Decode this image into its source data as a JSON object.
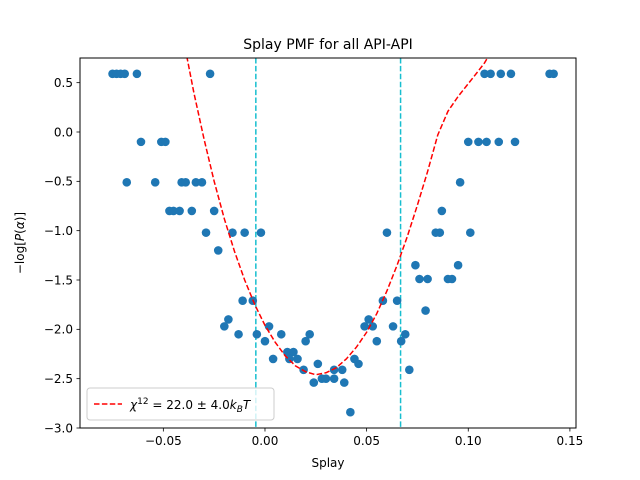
{
  "chart_data": {
    "type": "scatter",
    "title": "Splay PMF for all API-API",
    "xlabel": "Splay",
    "ylabel": "−log[P(α)]",
    "xlim": [
      -0.091,
      0.153
    ],
    "ylim": [
      -3.0,
      0.75
    ],
    "xticks": [
      -0.05,
      0.0,
      0.05,
      0.1,
      0.15
    ],
    "xtick_labels": [
      "−0.05",
      "0.00",
      "0.05",
      "0.10",
      "0.15"
    ],
    "yticks": [
      0.5,
      0.0,
      -0.5,
      -1.0,
      -1.5,
      -2.0,
      -2.5,
      -3.0
    ],
    "ytick_labels": [
      "0.5",
      "0.0",
      "−0.5",
      "−1.0",
      "−1.5",
      "−2.0",
      "−2.5",
      "−3.0"
    ],
    "grid": false,
    "legend_position": "lower-left",
    "series": [
      {
        "kind": "scatter",
        "color": "#1f77b4",
        "points": [
          [
            -0.075,
            0.59
          ],
          [
            -0.073,
            0.59
          ],
          [
            -0.071,
            0.59
          ],
          [
            -0.069,
            0.59
          ],
          [
            -0.063,
            0.59
          ],
          [
            -0.027,
            0.59
          ],
          [
            0.108,
            0.59
          ],
          [
            0.111,
            0.59
          ],
          [
            0.116,
            0.59
          ],
          [
            0.121,
            0.59
          ],
          [
            0.14,
            0.59
          ],
          [
            0.142,
            0.59
          ],
          [
            -0.061,
            -0.1
          ],
          [
            -0.051,
            -0.1
          ],
          [
            -0.049,
            -0.1
          ],
          [
            0.1,
            -0.1
          ],
          [
            0.105,
            -0.1
          ],
          [
            0.109,
            -0.1
          ],
          [
            0.115,
            -0.1
          ],
          [
            0.123,
            -0.1
          ],
          [
            -0.068,
            -0.51
          ],
          [
            -0.054,
            -0.51
          ],
          [
            -0.041,
            -0.51
          ],
          [
            -0.039,
            -0.51
          ],
          [
            -0.034,
            -0.51
          ],
          [
            -0.031,
            -0.51
          ],
          [
            0.096,
            -0.51
          ],
          [
            -0.047,
            -0.8
          ],
          [
            -0.045,
            -0.8
          ],
          [
            -0.042,
            -0.8
          ],
          [
            -0.036,
            -0.8
          ],
          [
            -0.025,
            -0.8
          ],
          [
            0.087,
            -0.8
          ],
          [
            -0.029,
            -1.02
          ],
          [
            -0.016,
            -1.02
          ],
          [
            -0.01,
            -1.02
          ],
          [
            -0.002,
            -1.02
          ],
          [
            0.06,
            -1.02
          ],
          [
            0.084,
            -1.02
          ],
          [
            0.086,
            -1.02
          ],
          [
            0.101,
            -1.02
          ],
          [
            -0.023,
            -1.2
          ],
          [
            0.074,
            -1.35
          ],
          [
            0.095,
            -1.35
          ],
          [
            0.076,
            -1.49
          ],
          [
            0.08,
            -1.49
          ],
          [
            0.09,
            -1.49
          ],
          [
            0.092,
            -1.49
          ],
          [
            -0.011,
            -1.71
          ],
          [
            -0.006,
            -1.71
          ],
          [
            0.058,
            -1.71
          ],
          [
            0.065,
            -1.71
          ],
          [
            0.079,
            -1.81
          ],
          [
            -0.018,
            -1.9
          ],
          [
            -0.02,
            -1.97
          ],
          [
            0.002,
            -1.97
          ],
          [
            0.049,
            -1.97
          ],
          [
            0.053,
            -1.97
          ],
          [
            0.063,
            -1.97
          ],
          [
            0.051,
            -1.9
          ],
          [
            -0.013,
            -2.05
          ],
          [
            -0.004,
            -2.05
          ],
          [
            0.008,
            -2.05
          ],
          [
            0.022,
            -2.05
          ],
          [
            0.069,
            -2.05
          ],
          [
            0.0,
            -2.12
          ],
          [
            0.02,
            -2.12
          ],
          [
            0.055,
            -2.12
          ],
          [
            0.067,
            -2.12
          ],
          [
            0.011,
            -2.23
          ],
          [
            0.014,
            -2.23
          ],
          [
            0.004,
            -2.3
          ],
          [
            0.012,
            -2.3
          ],
          [
            0.016,
            -2.3
          ],
          [
            0.044,
            -2.3
          ],
          [
            0.026,
            -2.35
          ],
          [
            0.046,
            -2.35
          ],
          [
            0.019,
            -2.41
          ],
          [
            0.034,
            -2.41
          ],
          [
            0.038,
            -2.41
          ],
          [
            0.071,
            -2.41
          ],
          [
            0.028,
            -2.5
          ],
          [
            0.03,
            -2.5
          ],
          [
            0.034,
            -2.5
          ],
          [
            0.024,
            -2.54
          ],
          [
            0.039,
            -2.54
          ],
          [
            0.042,
            -2.84
          ]
        ]
      },
      {
        "kind": "line",
        "name": "χ¹² = 22.0 ± 4.0k_BT",
        "color": "#ff0000",
        "dash": "dashed",
        "x": [
          -0.0385,
          -0.035,
          -0.03,
          -0.025,
          -0.02,
          -0.015,
          -0.01,
          -0.005,
          0.0,
          0.005,
          0.01,
          0.015,
          0.02,
          0.025,
          0.03,
          0.035,
          0.04,
          0.045,
          0.05,
          0.055,
          0.06,
          0.065,
          0.07,
          0.075,
          0.08,
          0.085,
          0.09,
          0.095,
          0.1,
          0.105,
          0.108,
          0.11
        ],
        "y": [
          0.77,
          0.4,
          -0.07,
          -0.5,
          -0.88,
          -1.21,
          -1.5,
          -1.75,
          -1.96,
          -2.13,
          -2.27,
          -2.37,
          -2.43,
          -2.46,
          -2.44,
          -2.39,
          -2.3,
          -2.18,
          -2.03,
          -1.84,
          -1.61,
          -1.35,
          -1.06,
          -0.74,
          -0.4,
          -0.03,
          0.21,
          0.36,
          0.49,
          0.62,
          0.7,
          0.77
        ]
      },
      {
        "kind": "vline",
        "color": "#17becf",
        "dash": "dashed",
        "x": [
          -0.0045,
          0.0667
        ]
      }
    ],
    "legend": {
      "label_main": "χ",
      "label_sup": "12",
      "label_rest": " = 22.0 ± 4.0",
      "label_k": "k",
      "label_sub": "B",
      "label_T": "T"
    }
  }
}
